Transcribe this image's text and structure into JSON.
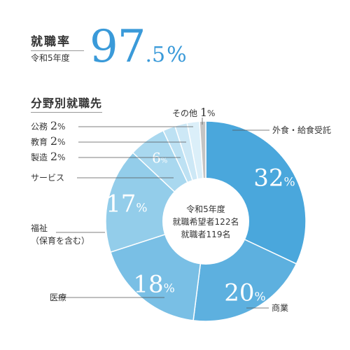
{
  "employment_rate": {
    "title": "就職率",
    "year": "令和5年度",
    "value_int": "97",
    "value_frac": ".5",
    "unit": "%"
  },
  "section_title": "分野別就職先",
  "chart_data": {
    "type": "pie",
    "title": "分野別就職先",
    "donut": true,
    "center_text": [
      "令和5年度",
      "就職希望者122名",
      "就職者119名"
    ],
    "unit": "%",
    "slices": [
      {
        "label": "外食・給食受託",
        "value": 32,
        "color": "#4aa7dc"
      },
      {
        "label": "商業",
        "value": 20,
        "color": "#5db0df"
      },
      {
        "label": "医療",
        "value": 18,
        "color": "#79bfe5"
      },
      {
        "label": "福祉",
        "sublabel": "（保育を含む）",
        "value": 17,
        "color": "#93cdea"
      },
      {
        "label": "サービス",
        "value": 6,
        "color": "#a9d8ef"
      },
      {
        "label": "製造",
        "value": 2,
        "color": "#bde1f3"
      },
      {
        "label": "教育",
        "value": 2,
        "color": "#cde8f6"
      },
      {
        "label": "公務",
        "value": 2,
        "color": "#dbeff9"
      },
      {
        "label": "その他",
        "value": 1,
        "color": "#c4c4c4"
      }
    ]
  }
}
